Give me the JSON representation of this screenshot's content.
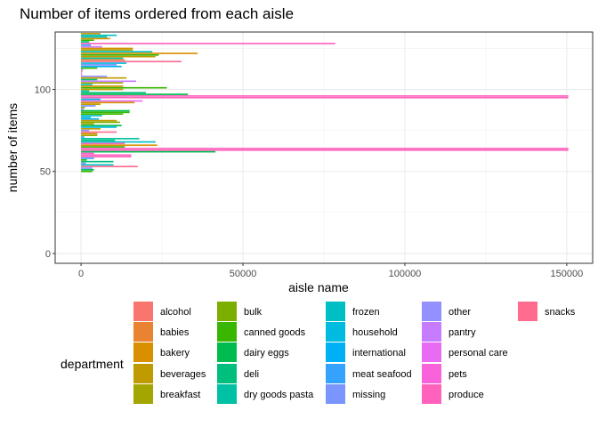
{
  "chart_data": {
    "type": "bar",
    "orientation": "horizontal",
    "title": "Number of items ordered from each aisle",
    "xlabel": "aisle name",
    "ylabel": "number of items",
    "xlim": [
      -8000,
      158000
    ],
    "ylim": [
      -6,
      135
    ],
    "xticks": [
      0,
      50000,
      100000,
      150000
    ],
    "xtick_labels": [
      "0",
      "50000",
      "100000",
      "150000"
    ],
    "yticks": [
      0,
      50,
      100
    ],
    "ytick_labels": [
      "0",
      "50",
      "100"
    ],
    "grid": true,
    "legend": {
      "title": "department",
      "position": "bottom",
      "entries": [
        {
          "name": "alcohol",
          "color": "#F8766D"
        },
        {
          "name": "babies",
          "color": "#EA8331"
        },
        {
          "name": "bakery",
          "color": "#D89000"
        },
        {
          "name": "beverages",
          "color": "#C09B00"
        },
        {
          "name": "breakfast",
          "color": "#A3A500"
        },
        {
          "name": "bulk",
          "color": "#7CAE00"
        },
        {
          "name": "canned goods",
          "color": "#39B600"
        },
        {
          "name": "dairy eggs",
          "color": "#00BB4E"
        },
        {
          "name": "deli",
          "color": "#00BF7D"
        },
        {
          "name": "dry goods pasta",
          "color": "#00C1A3"
        },
        {
          "name": "frozen",
          "color": "#00BFC4"
        },
        {
          "name": "household",
          "color": "#00BAE0"
        },
        {
          "name": "international",
          "color": "#00B0F6"
        },
        {
          "name": "meat seafood",
          "color": "#35A2FF"
        },
        {
          "name": "missing",
          "color": "#7B95FF"
        },
        {
          "name": "other",
          "color": "#9590FF"
        },
        {
          "name": "pantry",
          "color": "#C77CFF"
        },
        {
          "name": "personal care",
          "color": "#E76BF3"
        },
        {
          "name": "pets",
          "color": "#FA62DB"
        },
        {
          "name": "produce",
          "color": "#FF62BC"
        },
        {
          "name": "snacks",
          "color": "#FF6C90"
        }
      ]
    },
    "bars": [
      {
        "y": 134,
        "value": 6000,
        "dept": "beverages"
      },
      {
        "y": 133,
        "value": 11000,
        "dept": "frozen"
      },
      {
        "y": 132,
        "value": 8000,
        "dept": "dry goods pasta"
      },
      {
        "y": 131,
        "value": 9000,
        "dept": "bakery"
      },
      {
        "y": 130,
        "value": 4000,
        "dept": "canned goods"
      },
      {
        "y": 129,
        "value": 2500,
        "dept": "deli"
      },
      {
        "y": 128,
        "value": 78500,
        "dept": "produce"
      },
      {
        "y": 127,
        "value": 3000,
        "dept": "meat seafood"
      },
      {
        "y": 126,
        "value": 6500,
        "dept": "pantry"
      },
      {
        "y": 125,
        "value": 16000,
        "dept": "bakery"
      },
      {
        "y": 124,
        "value": 16000,
        "dept": "breakfast"
      },
      {
        "y": 123,
        "value": 22000,
        "dept": "frozen"
      },
      {
        "y": 122,
        "value": 36000,
        "dept": "bakery"
      },
      {
        "y": 121,
        "value": 24000,
        "dept": "canned goods"
      },
      {
        "y": 120,
        "value": 23000,
        "dept": "beverages"
      },
      {
        "y": 119,
        "value": 13000,
        "dept": "dry goods pasta"
      },
      {
        "y": 118,
        "value": 13500,
        "dept": "babies"
      },
      {
        "y": 117,
        "value": 31000,
        "dept": "snacks"
      },
      {
        "y": 116,
        "value": 14000,
        "dept": "household"
      },
      {
        "y": 115,
        "value": 11000,
        "dept": "missing"
      },
      {
        "y": 114,
        "value": 12500,
        "dept": "international"
      },
      {
        "y": 113,
        "value": 5000,
        "dept": "canned goods"
      },
      {
        "y": 112,
        "value": 600,
        "dept": "other"
      },
      {
        "y": 111,
        "value": 400,
        "dept": "alcohol"
      },
      {
        "y": 110,
        "value": 300,
        "dept": "personal care"
      },
      {
        "y": 109,
        "value": 300,
        "dept": "pets"
      },
      {
        "y": 108,
        "value": 8000,
        "dept": "other"
      },
      {
        "y": 107,
        "value": 14000,
        "dept": "beverages"
      },
      {
        "y": 106,
        "value": 5000,
        "dept": "deli"
      },
      {
        "y": 105,
        "value": 17000,
        "dept": "pantry"
      },
      {
        "y": 104,
        "value": 13000,
        "dept": "breakfast"
      },
      {
        "y": 103,
        "value": 3500,
        "dept": "frozen"
      },
      {
        "y": 102,
        "value": 13000,
        "dept": "bakery"
      },
      {
        "y": 101,
        "value": 26500,
        "dept": "canned goods"
      },
      {
        "y": 100,
        "value": 13000,
        "dept": "beverages"
      },
      {
        "y": 99,
        "value": 2500,
        "dept": "dry goods pasta"
      },
      {
        "y": 98,
        "value": 20000,
        "dept": "deli"
      },
      {
        "y": 97,
        "value": 33000,
        "dept": "dairy eggs"
      },
      {
        "y": 96,
        "value": 150500,
        "dept": "produce"
      },
      {
        "y": 95,
        "value": 150500,
        "dept": "produce"
      },
      {
        "y": 94,
        "value": 6000,
        "dept": "household"
      },
      {
        "y": 93,
        "value": 19000,
        "dept": "personal care"
      },
      {
        "y": 92,
        "value": 16500,
        "dept": "bakery"
      },
      {
        "y": 91,
        "value": 6000,
        "dept": "beverages"
      },
      {
        "y": 90,
        "value": 4500,
        "dept": "missing"
      },
      {
        "y": 89,
        "value": 1200,
        "dept": "bulk"
      },
      {
        "y": 88,
        "value": 800,
        "dept": "other"
      },
      {
        "y": 87,
        "value": 15000,
        "dept": "dairy eggs"
      },
      {
        "y": 86,
        "value": 15000,
        "dept": "canned goods"
      },
      {
        "y": 85,
        "value": 13000,
        "dept": "canned goods"
      },
      {
        "y": 84,
        "value": 6500,
        "dept": "frozen"
      },
      {
        "y": 83,
        "value": 3000,
        "dept": "household"
      },
      {
        "y": 82,
        "value": 5500,
        "dept": "international"
      },
      {
        "y": 81,
        "value": 11000,
        "dept": "beverages"
      },
      {
        "y": 80,
        "value": 12000,
        "dept": "bulk"
      },
      {
        "y": 79,
        "value": 4000,
        "dept": "breakfast"
      },
      {
        "y": 78,
        "value": 12500,
        "dept": "dairy eggs"
      },
      {
        "y": 77,
        "value": 11000,
        "dept": "household"
      },
      {
        "y": 76,
        "value": 6000,
        "dept": "beverages"
      },
      {
        "y": 75,
        "value": 2500,
        "dept": "missing"
      },
      {
        "y": 74,
        "value": 11000,
        "dept": "snacks"
      },
      {
        "y": 73,
        "value": 5000,
        "dept": "bakery"
      },
      {
        "y": 72,
        "value": 5000,
        "dept": "breakfast"
      },
      {
        "y": 71,
        "value": 1000,
        "dept": "meat seafood"
      },
      {
        "y": 70,
        "value": 18000,
        "dept": "dry goods pasta"
      },
      {
        "y": 69,
        "value": 10500,
        "dept": "deli"
      },
      {
        "y": 68,
        "value": 23000,
        "dept": "frozen"
      },
      {
        "y": 67,
        "value": 13500,
        "dept": "produce"
      },
      {
        "y": 66,
        "value": 23500,
        "dept": "bakery"
      },
      {
        "y": 65,
        "value": 13500,
        "dept": "canned goods"
      },
      {
        "y": 64,
        "value": 150500,
        "dept": "produce"
      },
      {
        "y": 63,
        "value": 150500,
        "dept": "produce"
      },
      {
        "y": 62,
        "value": 41500,
        "dept": "dairy eggs"
      },
      {
        "y": 61,
        "value": 4000,
        "dept": "pets"
      },
      {
        "y": 60,
        "value": 15500,
        "dept": "produce"
      },
      {
        "y": 59,
        "value": 15500,
        "dept": "produce"
      },
      {
        "y": 58,
        "value": 4000,
        "dept": "meat seafood"
      },
      {
        "y": 57,
        "value": 1800,
        "dept": "canned goods"
      },
      {
        "y": 56,
        "value": 10000,
        "dept": "deli"
      },
      {
        "y": 55,
        "value": 1500,
        "dept": "other"
      },
      {
        "y": 54,
        "value": 10000,
        "dept": "frozen"
      },
      {
        "y": 53,
        "value": 17500,
        "dept": "snacks"
      },
      {
        "y": 52,
        "value": 3500,
        "dept": "missing"
      },
      {
        "y": 51,
        "value": 4000,
        "dept": "dairy eggs"
      },
      {
        "y": 50,
        "value": 3500,
        "dept": "canned goods"
      }
    ]
  }
}
